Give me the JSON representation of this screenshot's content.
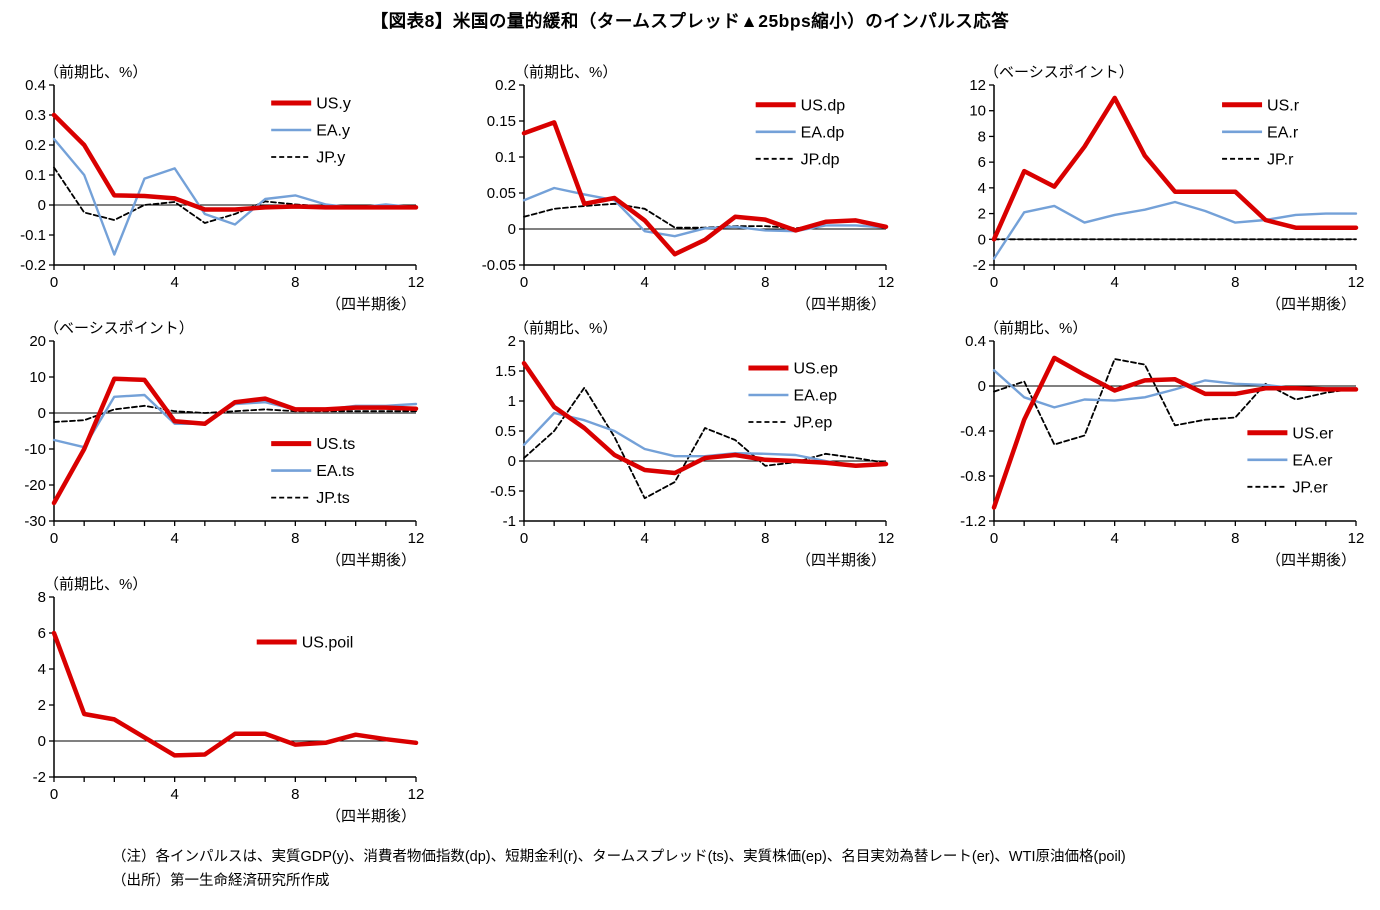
{
  "title": "【図表8】米国の量的緩和（タームスプレッド▲25bps縮小）のインパルス応答",
  "notes": {
    "line1": "（注）各インパルスは、実質GDP(y)、消費者物価指数(dp)、短期金利(r)、タームスプレッド(ts)、実質株価(ep)、名目実効為替レート(er)、WTI原油価格(poil)",
    "line2": "（出所）第一生命経済研究所作成"
  },
  "colors": {
    "us": "#d90000",
    "ea": "#74a1d8",
    "jp": "#000000"
  },
  "chart_data": [
    {
      "type": "line",
      "id": "y",
      "unit_label": "（前期比、%）",
      "xlabel": "（四半期後）",
      "x": [
        0,
        1,
        2,
        3,
        4,
        5,
        6,
        7,
        8,
        9,
        10,
        11,
        12
      ],
      "xticks_labeled": [
        0,
        4,
        8,
        12
      ],
      "ylim": [
        -0.2,
        0.4
      ],
      "yticks": [
        -0.2,
        -0.1,
        0,
        0.1,
        0.2,
        0.3,
        0.4
      ],
      "legend_pos": [
        0.6,
        0.1
      ],
      "series": [
        {
          "name": "US.y",
          "style": "us",
          "values": [
            0.3,
            0.2,
            0.032,
            0.03,
            0.022,
            -0.015,
            -0.015,
            -0.008,
            -0.005,
            -0.008,
            -0.008,
            -0.008,
            -0.008
          ]
        },
        {
          "name": "EA.y",
          "style": "ea",
          "values": [
            0.22,
            0.1,
            -0.165,
            0.088,
            0.122,
            -0.03,
            -0.065,
            0.02,
            0.032,
            0.002,
            -0.01,
            0.002,
            -0.008
          ]
        },
        {
          "name": "JP.y",
          "style": "jp",
          "values": [
            0.125,
            -0.025,
            -0.05,
            0.0,
            0.01,
            -0.06,
            -0.03,
            0.012,
            0.002,
            -0.005,
            -0.01,
            -0.01,
            -0.008
          ]
        }
      ]
    },
    {
      "type": "line",
      "id": "dp",
      "unit_label": "（前期比、%）",
      "xlabel": "（四半期後）",
      "x": [
        0,
        1,
        2,
        3,
        4,
        5,
        6,
        7,
        8,
        9,
        10,
        11,
        12
      ],
      "xticks_labeled": [
        0,
        4,
        8,
        12
      ],
      "ylim": [
        -0.05,
        0.2
      ],
      "yticks": [
        -0.05,
        0,
        0.05,
        0.1,
        0.15,
        0.2
      ],
      "legend_pos": [
        0.64,
        0.11
      ],
      "series": [
        {
          "name": "US.dp",
          "style": "us",
          "values": [
            0.133,
            0.148,
            0.035,
            0.043,
            0.012,
            -0.035,
            -0.015,
            0.017,
            0.013,
            -0.002,
            0.01,
            0.012,
            0.003
          ]
        },
        {
          "name": "EA.dp",
          "style": "ea",
          "values": [
            0.04,
            0.057,
            0.048,
            0.04,
            -0.003,
            -0.01,
            0.001,
            0.003,
            -0.002,
            -0.003,
            0.005,
            0.005,
            0.002
          ]
        },
        {
          "name": "JP.dp",
          "style": "jp",
          "values": [
            0.017,
            0.028,
            0.032,
            0.035,
            0.028,
            0.002,
            0.002,
            0.004,
            0.004,
            0.001,
            0.005,
            0.005,
            0.003
          ]
        }
      ]
    },
    {
      "type": "line",
      "id": "r",
      "unit_label": "（ベーシスポイント）",
      "xlabel": "（四半期後）",
      "x": [
        0,
        1,
        2,
        3,
        4,
        5,
        6,
        7,
        8,
        9,
        10,
        11,
        12
      ],
      "xticks_labeled": [
        0,
        4,
        8,
        12
      ],
      "ylim": [
        -2,
        12
      ],
      "yticks": [
        -2,
        0,
        2,
        4,
        6,
        8,
        10,
        12
      ],
      "legend_pos": [
        0.63,
        0.11
      ],
      "series": [
        {
          "name": "US.r",
          "style": "us",
          "values": [
            0,
            5.3,
            4.1,
            7.2,
            11.0,
            6.5,
            3.7,
            3.7,
            3.7,
            1.5,
            0.9,
            0.9,
            0.9
          ]
        },
        {
          "name": "EA.r",
          "style": "ea",
          "values": [
            -1.5,
            2.1,
            2.6,
            1.3,
            1.9,
            2.3,
            2.9,
            2.2,
            1.3,
            1.5,
            1.9,
            2.0,
            2.0
          ]
        },
        {
          "name": "JP.r",
          "style": "jp",
          "values": [
            0,
            0,
            0,
            0,
            0,
            0,
            0,
            0,
            0,
            0,
            0,
            0,
            0
          ]
        }
      ]
    },
    {
      "type": "line",
      "id": "ts",
      "unit_label": "（ベーシスポイント）",
      "xlabel": "（四半期後）",
      "x": [
        0,
        1,
        2,
        3,
        4,
        5,
        6,
        7,
        8,
        9,
        10,
        11,
        12
      ],
      "xticks_labeled": [
        0,
        4,
        8,
        12
      ],
      "ylim": [
        -30,
        20
      ],
      "yticks": [
        -30,
        -20,
        -10,
        0,
        10,
        20
      ],
      "legend_pos": [
        0.6,
        0.57
      ],
      "series": [
        {
          "name": "US.ts",
          "style": "us",
          "values": [
            -25,
            -10,
            9.5,
            9.2,
            -2.3,
            -3.0,
            3.0,
            4.0,
            1.0,
            1.0,
            1.5,
            1.5,
            1.2
          ]
        },
        {
          "name": "EA.ts",
          "style": "ea",
          "values": [
            -7.5,
            -9.5,
            4.5,
            5.0,
            -3.0,
            -3.0,
            2.5,
            3.0,
            1.0,
            1.0,
            2.0,
            2.0,
            2.5
          ]
        },
        {
          "name": "JP.ts",
          "style": "jp",
          "values": [
            -2.5,
            -2.0,
            1.0,
            2.0,
            0.5,
            0.0,
            0.5,
            1.0,
            0.5,
            0.5,
            0.5,
            0.5,
            0.5
          ]
        }
      ]
    },
    {
      "type": "line",
      "id": "ep",
      "unit_label": "（前期比、%）",
      "xlabel": "（四半期後）",
      "x": [
        0,
        1,
        2,
        3,
        4,
        5,
        6,
        7,
        8,
        9,
        10,
        11,
        12
      ],
      "xticks_labeled": [
        0,
        4,
        8,
        12
      ],
      "ylim": [
        -1,
        2
      ],
      "yticks": [
        -1,
        -0.5,
        0,
        0.5,
        1,
        1.5,
        2
      ],
      "legend_pos": [
        0.62,
        0.15
      ],
      "series": [
        {
          "name": "US.ep",
          "style": "us",
          "values": [
            1.63,
            0.9,
            0.55,
            0.1,
            -0.15,
            -0.2,
            0.05,
            0.1,
            0.02,
            0.0,
            -0.03,
            -0.08,
            -0.05
          ]
        },
        {
          "name": "EA.ep",
          "style": "ea",
          "values": [
            0.27,
            0.8,
            0.68,
            0.5,
            0.2,
            0.08,
            0.08,
            0.13,
            0.12,
            0.1,
            0.0,
            -0.08,
            -0.03
          ]
        },
        {
          "name": "JP.ep",
          "style": "jp",
          "values": [
            0.05,
            0.5,
            1.22,
            0.4,
            -0.62,
            -0.35,
            0.55,
            0.35,
            -0.08,
            -0.02,
            0.12,
            0.05,
            -0.03
          ]
        }
      ]
    },
    {
      "type": "line",
      "id": "er",
      "unit_label": "（前期比、%）",
      "xlabel": "（四半期後）",
      "x": [
        0,
        1,
        2,
        3,
        4,
        5,
        6,
        7,
        8,
        9,
        10,
        11,
        12
      ],
      "xticks_labeled": [
        0,
        4,
        8,
        12
      ],
      "ylim": [
        -1.2,
        0.4
      ],
      "yticks": [
        -1.2,
        -0.8,
        -0.4,
        0,
        0.4
      ],
      "legend_pos": [
        0.7,
        0.51
      ],
      "series": [
        {
          "name": "US.er",
          "style": "us",
          "values": [
            -1.08,
            -0.3,
            0.25,
            0.1,
            -0.04,
            0.05,
            0.06,
            -0.07,
            -0.07,
            -0.02,
            -0.02,
            -0.03,
            -0.03
          ]
        },
        {
          "name": "EA.er",
          "style": "ea",
          "values": [
            0.14,
            -0.1,
            -0.19,
            -0.12,
            -0.13,
            -0.1,
            -0.03,
            0.05,
            0.02,
            0.01,
            -0.02,
            -0.02,
            -0.02
          ]
        },
        {
          "name": "JP.er",
          "style": "jp",
          "values": [
            -0.05,
            0.04,
            -0.52,
            -0.44,
            0.24,
            0.19,
            -0.35,
            -0.3,
            -0.28,
            0.02,
            -0.12,
            -0.06,
            -0.02
          ]
        }
      ]
    },
    {
      "type": "line",
      "id": "poil",
      "unit_label": "（前期比、%）",
      "xlabel": "（四半期後）",
      "x": [
        0,
        1,
        2,
        3,
        4,
        5,
        6,
        7,
        8,
        9,
        10,
        11,
        12
      ],
      "xticks_labeled": [
        0,
        4,
        8,
        12
      ],
      "ylim": [
        -2,
        8
      ],
      "yticks": [
        -2,
        0,
        2,
        4,
        6,
        8
      ],
      "legend_pos": [
        0.56,
        0.25
      ],
      "series": [
        {
          "name": "US.poil",
          "style": "us",
          "values": [
            6.0,
            1.5,
            1.2,
            0.2,
            -0.8,
            -0.75,
            0.4,
            0.4,
            -0.2,
            -0.1,
            0.35,
            0.1,
            -0.1
          ]
        }
      ]
    }
  ]
}
